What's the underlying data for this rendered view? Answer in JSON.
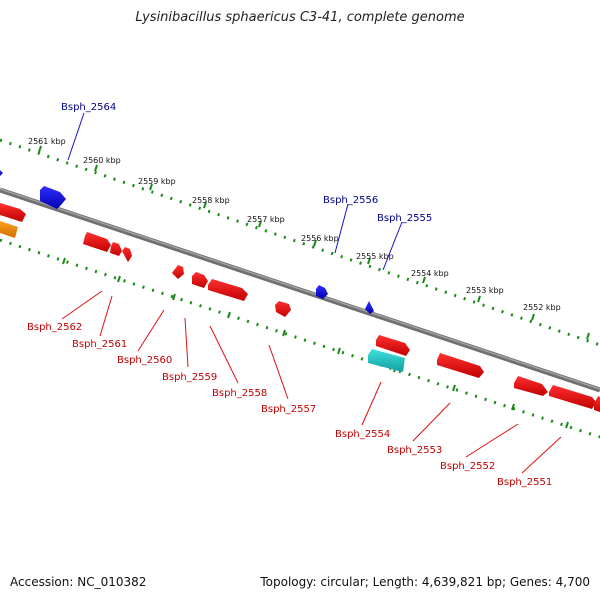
{
  "title": "Lysinibacillus sphaericus C3-41, complete genome",
  "footer": {
    "accession": "Accession: NC_010382",
    "topology": "Topology: circular; Length: 4,639,821 bp; Genes: 4,700"
  },
  "colors": {
    "backbone": "#808080",
    "tick_track": "#1a8a1a",
    "forward_gene": "#1515e0",
    "reverse_gene": "#ee1010",
    "cyan_gene": "#22c8c8",
    "orange_gene": "#ff8c00",
    "forward_label": "#00008b",
    "reverse_label": "#c00000"
  },
  "scale_labels": [
    "2561 kbp",
    "2560 kbp",
    "2559 kbp",
    "2558 kbp",
    "2557 kbp",
    "2556 kbp",
    "2555 kbp",
    "2554 kbp",
    "2553 kbp",
    "2552 kbp"
  ],
  "forward_labels": [
    "Bsph_2564",
    "Bsph_2556",
    "Bsph_2555"
  ],
  "reverse_labels": [
    "Bsph_2562",
    "Bsph_2561",
    "Bsph_2560",
    "Bsph_2559",
    "Bsph_2558",
    "Bsph_2557",
    "Bsph_2554",
    "Bsph_2553",
    "Bsph_2552",
    "Bsph_2551"
  ]
}
